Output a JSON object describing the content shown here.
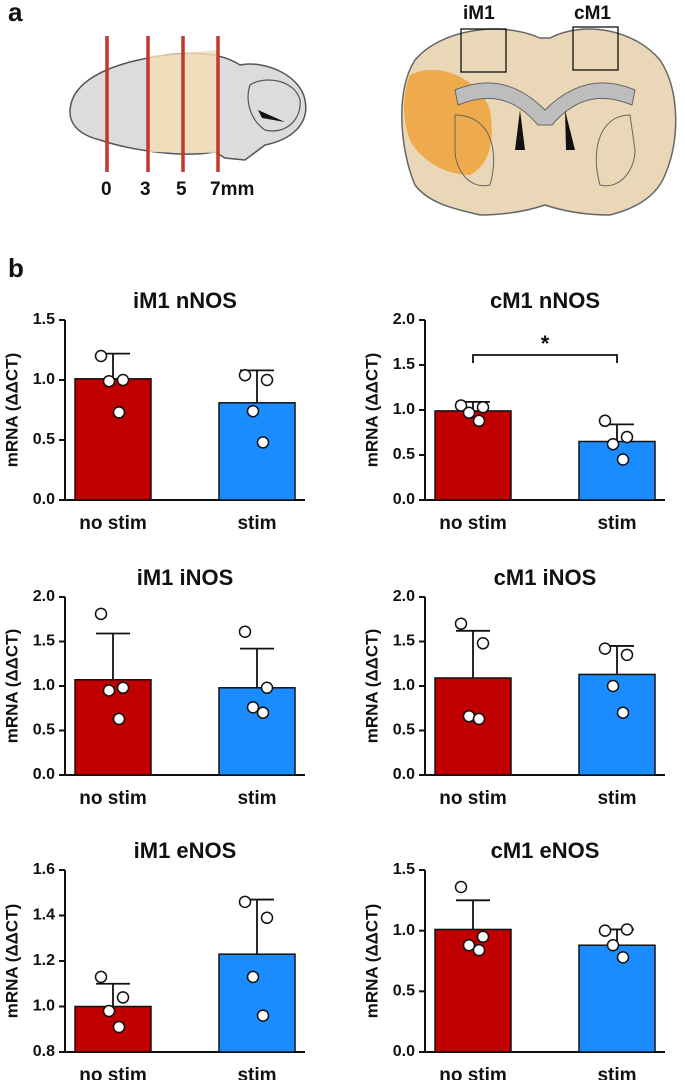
{
  "panel_labels": [
    "a",
    "b"
  ],
  "diagram": {
    "sagittal_ticks": [
      "0",
      "3",
      "5",
      "7mm"
    ],
    "regions": [
      "iM1",
      "cM1"
    ]
  },
  "chart_data": [
    {
      "type": "bar",
      "title": "iM1 nNOS",
      "y_label": "mRNA (ΔΔCT)",
      "categories": [
        "no stim",
        "stim"
      ],
      "colors": [
        "#c00000",
        "#1a8cff"
      ],
      "values": [
        1.01,
        0.81
      ],
      "errors": [
        0.21,
        0.27
      ],
      "points": [
        [
          1.2,
          1.0,
          0.99,
          0.73
        ],
        [
          1.04,
          1.0,
          0.74,
          0.48
        ]
      ],
      "ylim": [
        0,
        1.5
      ],
      "yticks": [
        {
          "value": 0,
          "label": "0.0"
        },
        0.5,
        {
          "value": 1,
          "label": "1.0"
        },
        1.5
      ]
    },
    {
      "type": "bar",
      "title": "cM1 nNOS",
      "y_label": "mRNA (ΔΔCT)",
      "categories": [
        "no stim",
        "stim"
      ],
      "colors": [
        "#c00000",
        "#1a8cff"
      ],
      "values": [
        0.99,
        0.65
      ],
      "errors": [
        0.1,
        0.19
      ],
      "points": [
        [
          1.05,
          1.03,
          0.97,
          0.88
        ],
        [
          0.88,
          0.7,
          0.62,
          0.45
        ]
      ],
      "annotation": "*",
      "ylim": [
        0,
        2
      ],
      "yticks": [
        {
          "value": 0,
          "label": "0.0"
        },
        0.5,
        {
          "value": 1,
          "label": "1.0"
        },
        1.5,
        {
          "value": 2,
          "label": "2.0"
        }
      ]
    },
    {
      "type": "bar",
      "title": "iM1 iNOS",
      "y_label": "mRNA (ΔΔCT)",
      "categories": [
        "no stim",
        "stim"
      ],
      "colors": [
        "#c00000",
        "#1a8cff"
      ],
      "values": [
        1.07,
        0.98
      ],
      "errors": [
        0.52,
        0.44
      ],
      "points": [
        [
          1.81,
          0.98,
          0.95,
          0.63
        ],
        [
          1.61,
          0.98,
          0.76,
          0.7
        ]
      ],
      "ylim": [
        0,
        2
      ],
      "yticks": [
        {
          "value": 0,
          "label": "0.0"
        },
        0.5,
        {
          "value": 1,
          "label": "1.0"
        },
        1.5,
        {
          "value": 2,
          "label": "2.0"
        }
      ]
    },
    {
      "type": "bar",
      "title": "cM1 iNOS",
      "y_label": "mRNA (ΔΔCT)",
      "categories": [
        "no stim",
        "stim"
      ],
      "colors": [
        "#c00000",
        "#1a8cff"
      ],
      "values": [
        1.09,
        1.13
      ],
      "errors": [
        0.53,
        0.32
      ],
      "points": [
        [
          1.7,
          1.48,
          0.66,
          0.63
        ],
        [
          1.42,
          1.35,
          1.0,
          0.7
        ]
      ],
      "ylim": [
        0,
        2
      ],
      "yticks": [
        {
          "value": 0,
          "label": "0.0"
        },
        0.5,
        {
          "value": 1,
          "label": "1.0"
        },
        1.5,
        {
          "value": 2,
          "label": "2.0"
        }
      ]
    },
    {
      "type": "bar",
      "title": "iM1 eNOS",
      "y_label": "mRNA (ΔΔCT)",
      "categories": [
        "no stim",
        "stim"
      ],
      "colors": [
        "#c00000",
        "#1a8cff"
      ],
      "values": [
        1.0,
        1.23
      ],
      "errors": [
        0.1,
        0.24
      ],
      "points": [
        [
          1.13,
          1.04,
          0.98,
          0.91
        ],
        [
          1.46,
          1.39,
          1.13,
          0.96
        ]
      ],
      "ylim": [
        0.8,
        1.6
      ],
      "yticks": [
        0.8,
        {
          "value": 1,
          "label": "1.0"
        },
        1.2,
        1.4,
        1.6
      ]
    },
    {
      "type": "bar",
      "title": "cM1 eNOS",
      "y_label": "mRNA (ΔΔCT)",
      "categories": [
        "no stim",
        "stim"
      ],
      "colors": [
        "#c00000",
        "#1a8cff"
      ],
      "values": [
        1.01,
        0.88
      ],
      "errors": [
        0.24,
        0.13
      ],
      "points": [
        [
          1.36,
          0.95,
          0.88,
          0.84
        ],
        [
          1.0,
          1.01,
          0.88,
          0.78
        ]
      ],
      "ylim": [
        0,
        1.5
      ],
      "yticks": [
        {
          "value": 0,
          "label": "0.0"
        },
        0.5,
        {
          "value": 1,
          "label": "1.0"
        },
        1.5
      ]
    }
  ]
}
